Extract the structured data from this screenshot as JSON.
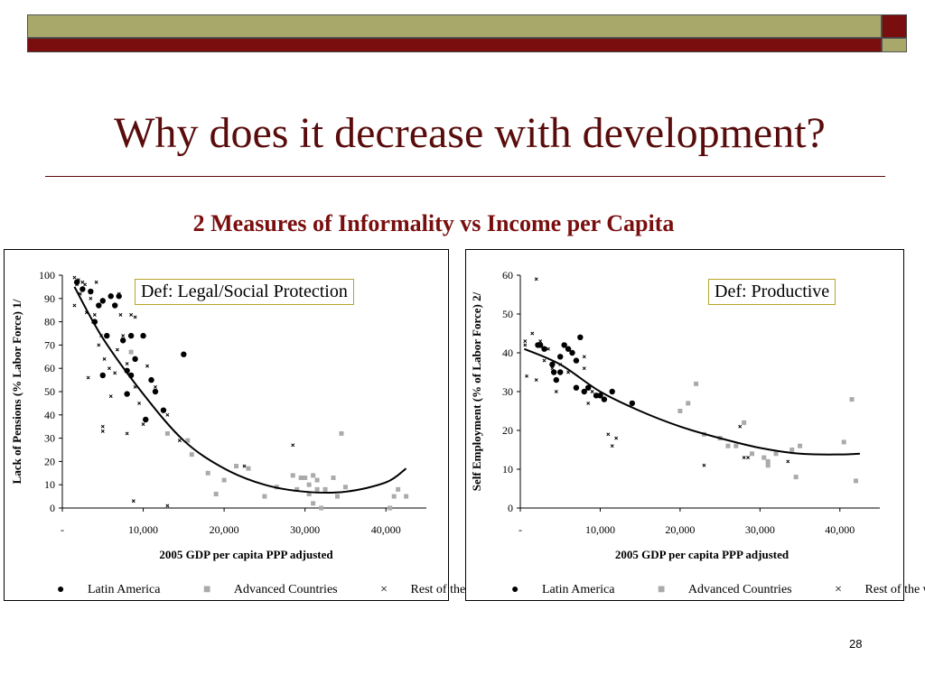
{
  "header": {
    "title": "Why does it decrease with development?",
    "subtitle": "2 Measures of Informality vs Income per Capita"
  },
  "page_number": "28",
  "colors": {
    "title": "#5a0c0c",
    "band_olive": "#a8a86b",
    "band_maroon": "#7a0e0e",
    "advanced": "#aaaaaa"
  },
  "chart_data": [
    {
      "type": "scatter",
      "definition": "Def: Legal/Social Protection",
      "xlabel": "2005 GDP per capita PPP adjusted",
      "ylabel": "Lack of Pensions (% Labor Force) 1/",
      "xlim": [
        0,
        45000
      ],
      "ylim": [
        0,
        100
      ],
      "xticks": [
        0,
        10000,
        20000,
        30000,
        40000
      ],
      "xtick_labels": [
        "-",
        "10,000",
        "20,000",
        "30,000",
        "40,000"
      ],
      "yticks": [
        0,
        10,
        20,
        30,
        40,
        50,
        60,
        70,
        80,
        90,
        100
      ],
      "ytick_labels": [
        "0",
        "10",
        "20",
        "30",
        "40",
        "50",
        "60",
        "70",
        "80",
        "90",
        "100"
      ],
      "legend": [
        "Latin America",
        "Advanced Countries",
        "Rest of the world"
      ],
      "legend_position": "bottom",
      "series": [
        {
          "name": "Latin America",
          "marker": "circle",
          "points": [
            [
              1800,
              97
            ],
            [
              2500,
              94
            ],
            [
              3500,
              93
            ],
            [
              4000,
              80
            ],
            [
              4500,
              87
            ],
            [
              5000,
              89
            ],
            [
              5500,
              74
            ],
            [
              6000,
              91
            ],
            [
              6500,
              87
            ],
            [
              7000,
              91
            ],
            [
              7500,
              72
            ],
            [
              8000,
              59
            ],
            [
              8000,
              49
            ],
            [
              8500,
              74
            ],
            [
              8500,
              57
            ],
            [
              9000,
              64
            ],
            [
              10000,
              74
            ],
            [
              10300,
              38
            ],
            [
              11000,
              55
            ],
            [
              11500,
              50
            ],
            [
              12500,
              42
            ],
            [
              15000,
              66
            ],
            [
              5000,
              57
            ]
          ]
        },
        {
          "name": "Advanced Countries",
          "marker": "square",
          "points": [
            [
              8500,
              67
            ],
            [
              13000,
              32
            ],
            [
              15500,
              29
            ],
            [
              16000,
              23
            ],
            [
              18000,
              15
            ],
            [
              19000,
              6
            ],
            [
              20000,
              12
            ],
            [
              21500,
              18
            ],
            [
              23000,
              17
            ],
            [
              25000,
              5
            ],
            [
              26500,
              9
            ],
            [
              28500,
              14
            ],
            [
              29000,
              8
            ],
            [
              29500,
              13
            ],
            [
              30000,
              13
            ],
            [
              30500,
              10
            ],
            [
              30500,
              6
            ],
            [
              31000,
              14
            ],
            [
              31000,
              2
            ],
            [
              31500,
              12
            ],
            [
              31500,
              8
            ],
            [
              32000,
              0
            ],
            [
              32500,
              8
            ],
            [
              33500,
              13
            ],
            [
              34000,
              5
            ],
            [
              34500,
              32
            ],
            [
              35000,
              9
            ],
            [
              40500,
              0
            ],
            [
              41000,
              5
            ],
            [
              41500,
              8
            ],
            [
              42500,
              5
            ]
          ]
        },
        {
          "name": "Rest of the world",
          "marker": "x",
          "points": [
            [
              1500,
              99
            ],
            [
              1500,
              87
            ],
            [
              1800,
              96
            ],
            [
              2000,
              98
            ],
            [
              2200,
              92
            ],
            [
              2500,
              97
            ],
            [
              2800,
              96
            ],
            [
              3000,
              84
            ],
            [
              3200,
              56
            ],
            [
              3500,
              90
            ],
            [
              3800,
              80
            ],
            [
              4000,
              83
            ],
            [
              4200,
              97
            ],
            [
              4500,
              70
            ],
            [
              4800,
              74
            ],
            [
              5000,
              35
            ],
            [
              5000,
              33
            ],
            [
              5200,
              64
            ],
            [
              5500,
              74
            ],
            [
              5800,
              60
            ],
            [
              6000,
              48
            ],
            [
              6500,
              58
            ],
            [
              6800,
              68
            ],
            [
              7000,
              92
            ],
            [
              7200,
              83
            ],
            [
              7500,
              74
            ],
            [
              8000,
              62
            ],
            [
              8000,
              32
            ],
            [
              8500,
              83
            ],
            [
              8800,
              3
            ],
            [
              9000,
              82
            ],
            [
              9000,
              52
            ],
            [
              9500,
              45
            ],
            [
              10000,
              36
            ],
            [
              10500,
              61
            ],
            [
              11500,
              52
            ],
            [
              12500,
              42
            ],
            [
              13000,
              40
            ],
            [
              14500,
              29
            ],
            [
              22500,
              18
            ],
            [
              28500,
              27
            ],
            [
              13000,
              1
            ]
          ]
        }
      ],
      "trend": [
        [
          1500,
          95
        ],
        [
          5000,
          73
        ],
        [
          10000,
          49
        ],
        [
          15000,
          29
        ],
        [
          20000,
          17
        ],
        [
          25000,
          10
        ],
        [
          30000,
          7
        ],
        [
          35000,
          7
        ],
        [
          40000,
          11
        ],
        [
          42500,
          17
        ]
      ]
    },
    {
      "type": "scatter",
      "definition": "Def: Productive",
      "xlabel": "2005 GDP per capita PPP adjusted",
      "ylabel": "Self Employment (% of Labor Force) 2/",
      "xlim": [
        0,
        45000
      ],
      "ylim": [
        0,
        60
      ],
      "xticks": [
        0,
        10000,
        20000,
        30000,
        40000
      ],
      "xtick_labels": [
        "-",
        "10,000",
        "20,000",
        "30,000",
        "40,000"
      ],
      "yticks": [
        0,
        10,
        20,
        30,
        40,
        50,
        60
      ],
      "ytick_labels": [
        "0",
        "10",
        "20",
        "30",
        "40",
        "50",
        "60"
      ],
      "legend": [
        "Latin America",
        "Advanced Countries",
        "Rest of the world"
      ],
      "legend_position": "bottom",
      "series": [
        {
          "name": "Latin America",
          "marker": "circle",
          "points": [
            [
              2200,
              42
            ],
            [
              2500,
              42
            ],
            [
              3000,
              41
            ],
            [
              4000,
              37
            ],
            [
              4200,
              35
            ],
            [
              4500,
              33
            ],
            [
              5000,
              39
            ],
            [
              5500,
              42
            ],
            [
              6000,
              41
            ],
            [
              6500,
              40
            ],
            [
              7000,
              38
            ],
            [
              7000,
              31
            ],
            [
              7500,
              44
            ],
            [
              8000,
              30
            ],
            [
              8500,
              31
            ],
            [
              9500,
              29
            ],
            [
              10000,
              29
            ],
            [
              10500,
              28
            ],
            [
              11500,
              30
            ],
            [
              14000,
              27
            ],
            [
              5000,
              35
            ]
          ]
        },
        {
          "name": "Advanced Countries",
          "marker": "square",
          "points": [
            [
              20000,
              25
            ],
            [
              21000,
              27
            ],
            [
              22000,
              32
            ],
            [
              23000,
              19
            ],
            [
              25000,
              18
            ],
            [
              26000,
              16
            ],
            [
              27000,
              16
            ],
            [
              28000,
              22
            ],
            [
              29000,
              14
            ],
            [
              30500,
              13
            ],
            [
              31000,
              11
            ],
            [
              31000,
              12
            ],
            [
              32000,
              14
            ],
            [
              34000,
              15
            ],
            [
              34500,
              8
            ],
            [
              35000,
              16
            ],
            [
              40500,
              17
            ],
            [
              41500,
              28
            ],
            [
              42000,
              7
            ]
          ]
        },
        {
          "name": "Rest of the world",
          "marker": "x",
          "points": [
            [
              600,
              42
            ],
            [
              600,
              43
            ],
            [
              800,
              34
            ],
            [
              1500,
              45
            ],
            [
              2000,
              33
            ],
            [
              2000,
              59
            ],
            [
              2500,
              43
            ],
            [
              3000,
              38
            ],
            [
              3500,
              41
            ],
            [
              4000,
              36
            ],
            [
              4500,
              30
            ],
            [
              5000,
              37
            ],
            [
              6000,
              35
            ],
            [
              7000,
              31
            ],
            [
              8000,
              36
            ],
            [
              8000,
              39
            ],
            [
              8500,
              27
            ],
            [
              9000,
              30
            ],
            [
              11000,
              19
            ],
            [
              11500,
              16
            ],
            [
              12000,
              18
            ],
            [
              23000,
              11
            ],
            [
              27500,
              21
            ],
            [
              28000,
              13
            ],
            [
              28500,
              13
            ],
            [
              33500,
              12
            ]
          ]
        }
      ],
      "trend": [
        [
          500,
          41
        ],
        [
          5000,
          37
        ],
        [
          10000,
          30
        ],
        [
          15000,
          25
        ],
        [
          20000,
          21
        ],
        [
          25000,
          18
        ],
        [
          30000,
          15.5
        ],
        [
          35000,
          14
        ],
        [
          40000,
          13.8
        ],
        [
          42500,
          14
        ]
      ]
    }
  ]
}
